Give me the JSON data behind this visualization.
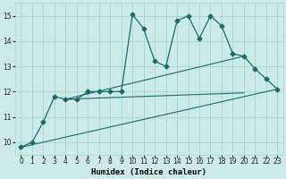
{
  "title": "",
  "xlabel": "Humidex (Indice chaleur)",
  "ylabel": "",
  "bg_color": "#cceae8",
  "grid_color": "#aad4d0",
  "line_color": "#1a6b6b",
  "xlim": [
    -0.5,
    23.5
  ],
  "ylim": [
    9.5,
    15.5
  ],
  "xticks": [
    0,
    1,
    2,
    3,
    4,
    5,
    6,
    7,
    8,
    9,
    10,
    11,
    12,
    13,
    14,
    15,
    16,
    17,
    18,
    19,
    20,
    21,
    22,
    23
  ],
  "yticks": [
    10,
    11,
    12,
    13,
    14,
    15
  ],
  "series": [
    {
      "x": [
        0,
        1,
        2,
        3,
        4,
        5,
        6,
        7,
        8,
        9,
        10,
        11,
        12,
        13,
        14,
        15,
        16,
        17,
        18,
        19,
        20,
        21,
        22,
        23
      ],
      "y": [
        9.8,
        10.0,
        10.8,
        11.8,
        11.7,
        11.7,
        12.0,
        12.0,
        12.0,
        12.0,
        15.05,
        14.5,
        13.2,
        13.0,
        14.8,
        15.0,
        14.1,
        15.0,
        14.6,
        13.5,
        13.4,
        12.9,
        12.5,
        12.1
      ],
      "marker": "D",
      "markersize": 2.5,
      "linewidth": 0.9,
      "is_main": true
    },
    {
      "x": [
        0,
        23
      ],
      "y": [
        9.8,
        12.1
      ],
      "marker": null,
      "linewidth": 0.8,
      "is_main": false
    },
    {
      "x": [
        4,
        20
      ],
      "y": [
        11.7,
        13.4
      ],
      "marker": null,
      "linewidth": 0.8,
      "is_main": false
    },
    {
      "x": [
        4,
        20
      ],
      "y": [
        11.7,
        11.95
      ],
      "marker": null,
      "linewidth": 0.8,
      "is_main": false
    }
  ]
}
